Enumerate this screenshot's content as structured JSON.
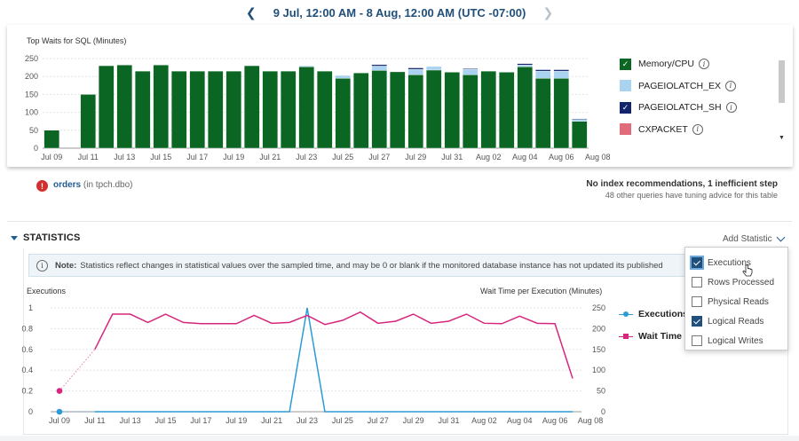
{
  "date_nav": {
    "prev_icon": "chevron-left-icon",
    "range": "9 Jul, 12:00 AM - 8 Aug, 12:00 AM (UTC -07:00)",
    "next_icon": "chevron-right-icon"
  },
  "waits": {
    "title": "Top Waits for SQL (Minutes)",
    "legend": [
      {
        "label": "Memory/CPU",
        "color": "#0b6623",
        "checked": true
      },
      {
        "label": "PAGEIOLATCH_EX",
        "color": "#a9d3f0",
        "checked": false
      },
      {
        "label": "PAGEIOLATCH_SH",
        "color": "#12246b",
        "checked": true
      },
      {
        "label": "CXPACKET",
        "color": "#e06b7a",
        "checked": false
      }
    ]
  },
  "chart_data": [
    {
      "type": "bar",
      "title": "Top Waits for SQL (Minutes)",
      "ylim": [
        0,
        250
      ],
      "yticks": [
        0,
        50,
        100,
        150,
        200,
        250
      ],
      "xtick_labels": [
        "Jul 09",
        "Jul 11",
        "Jul 13",
        "Jul 15",
        "Jul 17",
        "Jul 19",
        "Jul 21",
        "Jul 23",
        "Jul 25",
        "Jul 27",
        "Jul 29",
        "Jul 31",
        "Aug 02",
        "Aug 04",
        "Aug 06",
        "Aug 08"
      ],
      "grid": true,
      "series": [
        {
          "name": "Memory/CPU",
          "values": [
            50,
            0,
            150,
            230,
            232,
            215,
            232,
            215,
            215,
            215,
            215,
            230,
            215,
            215,
            227,
            215,
            195,
            210,
            217,
            213,
            205,
            218,
            212,
            205,
            215,
            212,
            227,
            195,
            195,
            75
          ]
        },
        {
          "name": "PAGEIOLATCH_EX",
          "values": [
            0,
            0,
            0,
            0,
            0,
            0,
            0,
            0,
            0,
            0,
            0,
            0,
            0,
            0,
            3,
            0,
            8,
            0,
            12,
            0,
            15,
            10,
            0,
            15,
            0,
            0,
            5,
            20,
            20,
            5
          ]
        },
        {
          "name": "PAGEIOLATCH_SH",
          "values": [
            0,
            0,
            0,
            0,
            0,
            0,
            0,
            0,
            0,
            0,
            0,
            0,
            0,
            0,
            0,
            0,
            0,
            0,
            4,
            0,
            4,
            0,
            0,
            2,
            0,
            0,
            4,
            4,
            4,
            2
          ]
        }
      ]
    },
    {
      "type": "line",
      "y_left_label": "Executions",
      "y_right_label": "Wait Time per Execution (Minutes)",
      "ylim_left": [
        0,
        1
      ],
      "ylim_right": [
        0,
        250
      ],
      "yticks_left": [
        "0",
        "0.2",
        "0.4",
        "0.6",
        "0.8",
        "1"
      ],
      "yticks_right": [
        "0",
        "50",
        "100",
        "150",
        "200",
        "250"
      ],
      "xtick_labels": [
        "Jul 09",
        "Jul 11",
        "Jul 13",
        "Jul 15",
        "Jul 17",
        "Jul 19",
        "Jul 21",
        "Jul 23",
        "Jul 25",
        "Jul 27",
        "Jul 29",
        "Jul 31",
        "Aug 02",
        "Aug 04",
        "Aug 06",
        "Aug 08"
      ],
      "series": [
        {
          "name": "Executions",
          "axis": "left",
          "color": "#2a9bd7",
          "values": [
            0,
            null,
            0,
            0,
            0,
            0,
            0,
            0,
            0,
            0,
            0,
            0,
            0,
            0,
            1,
            0,
            0,
            0,
            0,
            0,
            0,
            0,
            0,
            0,
            0,
            0,
            0,
            0,
            0,
            0
          ]
        },
        {
          "name": "Wait Time p",
          "axis": "right",
          "color": "#d6267d",
          "values": [
            50,
            null,
            150,
            235,
            235,
            215,
            235,
            215,
            212,
            212,
            212,
            232,
            213,
            215,
            232,
            210,
            220,
            240,
            213,
            218,
            235,
            213,
            218,
            235,
            213,
            212,
            230,
            213,
            212,
            80
          ]
        }
      ]
    }
  ],
  "recommendation": {
    "icon": "error-icon",
    "table": "orders",
    "schema": "(in tpch.dbo)",
    "summary": "No index recommendations, 1 inefficient step",
    "detail": "48 other queries have tuning advice for this table"
  },
  "statistics": {
    "heading": "STATISTICS",
    "add_label": "Add Statistic",
    "note_bold": "Note:",
    "note_text": "Statistics reflect changes in statistical values over the sampled time, and may be 0 or blank if the monitored database instance has not updated its published",
    "legend": [
      {
        "label": "Executions",
        "color": "#2a9bd7",
        "marker": "circle"
      },
      {
        "label": "Wait Time p",
        "color": "#d6267d",
        "marker": "square"
      }
    ],
    "options": [
      {
        "label": "Executions",
        "checked": true
      },
      {
        "label": "Rows Processed",
        "checked": false
      },
      {
        "label": "Physical Reads",
        "checked": false
      },
      {
        "label": "Logical Reads",
        "checked": true
      },
      {
        "label": "Logical Writes",
        "checked": false
      }
    ]
  }
}
